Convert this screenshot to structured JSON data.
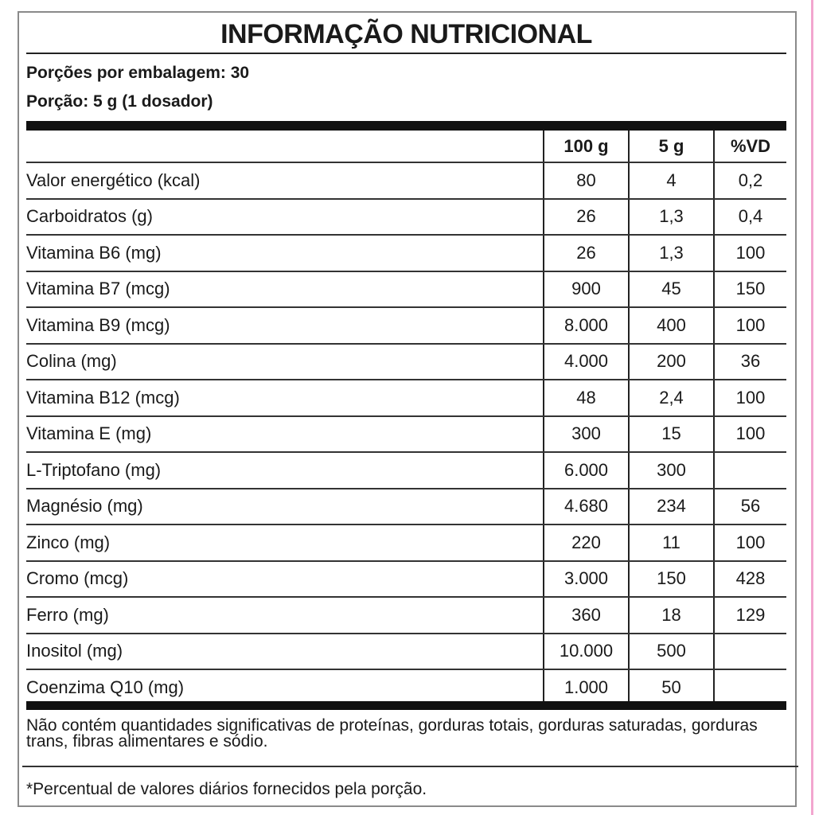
{
  "title": "INFORMAÇÃO NUTRICIONAL",
  "servings_per_package": "Porções por embalagem: 30",
  "serving_size": "Porção: 5 g (1 dosador)",
  "columns": [
    "",
    "100 g",
    "5 g",
    "%VD"
  ],
  "rows": [
    [
      "Valor energético (kcal)",
      "80",
      "4",
      "0,2"
    ],
    [
      "Carboidratos (g)",
      "26",
      "1,3",
      "0,4"
    ],
    [
      "Vitamina B6 (mg)",
      "26",
      "1,3",
      "100"
    ],
    [
      "Vitamina B7 (mcg)",
      "900",
      "45",
      "150"
    ],
    [
      "Vitamina B9 (mcg)",
      "8.000",
      "400",
      "100"
    ],
    [
      "Colina (mg)",
      "4.000",
      "200",
      "36"
    ],
    [
      "Vitamina B12 (mcg)",
      "48",
      "2,4",
      "100"
    ],
    [
      "Vitamina E (mg)",
      "300",
      "15",
      "100"
    ],
    [
      "L-Triptofano (mg)",
      "6.000",
      "300",
      ""
    ],
    [
      "Magnésio (mg)",
      "4.680",
      "234",
      "56"
    ],
    [
      "Zinco (mg)",
      "220",
      "11",
      "100"
    ],
    [
      "Cromo (mcg)",
      "3.000",
      "150",
      "428"
    ],
    [
      "Ferro (mg)",
      "360",
      "18",
      "129"
    ],
    [
      "Inositol (mg)",
      "10.000",
      "500",
      ""
    ],
    [
      "Coenzima Q10 (mg)",
      "1.000",
      "50",
      ""
    ]
  ],
  "footnote_nutrients": "Não contém quantidades significativas de proteínas, gorduras totais, gorduras saturadas, gorduras trans, fibras alimentares e sódio.",
  "footnote_vd": "*Percentual de valores diários fornecidos pela porção."
}
